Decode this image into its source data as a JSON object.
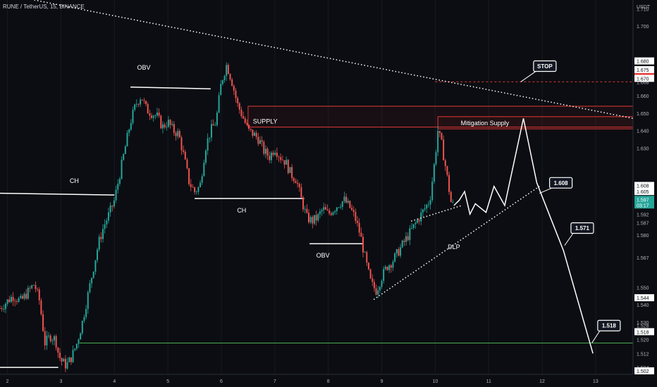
{
  "header": {
    "symbol_line": "RUNE / TetherUS, 15, BINANCE",
    "currency": "USDT"
  },
  "colors": {
    "background": "#0b0d12",
    "up_candle": "#26a69a",
    "down_candle": "#ef5350",
    "annotation_white": "#ffffff",
    "supply_red": "#e53935",
    "stop_red": "#e53935",
    "target_green": "#4caf50",
    "price_badge_green": "#26a69a"
  },
  "chart_data": {
    "type": "candlestick",
    "title": "RUNE / TetherUS, 15, BINANCE",
    "x_unit": "day",
    "xlim": [
      1.86,
      13.7
    ],
    "ylim": [
      1.5,
      1.715
    ],
    "x_ticks": [
      {
        "x": 2,
        "label": "2"
      },
      {
        "x": 3,
        "label": "3"
      },
      {
        "x": 4,
        "label": "4"
      },
      {
        "x": 5,
        "label": "5"
      },
      {
        "x": 6,
        "label": "6"
      },
      {
        "x": 7,
        "label": "7"
      },
      {
        "x": 8,
        "label": "8"
      },
      {
        "x": 9,
        "label": "9"
      },
      {
        "x": 10,
        "label": "10"
      },
      {
        "x": 11,
        "label": "11"
      },
      {
        "x": 12,
        "label": "12"
      },
      {
        "x": 13,
        "label": "13"
      }
    ],
    "y_ticks": [
      "1.710",
      "1.700",
      "1.675",
      "1.668",
      "1.660",
      "1.650",
      "1.640",
      "1.630",
      "1.608",
      "1.607",
      "1.598",
      "1.597",
      "1.592",
      "1.587",
      "1.580",
      "1.567",
      "1.550",
      "1.540",
      "1.530",
      "1.528",
      "1.520",
      "1.512",
      "1.504"
    ],
    "y_tick_values": [
      1.71,
      1.7,
      1.675,
      1.668,
      1.66,
      1.65,
      1.64,
      1.63,
      1.608,
      1.607,
      1.598,
      1.597,
      1.592,
      1.587,
      1.58,
      1.567,
      1.55,
      1.54,
      1.53,
      1.528,
      1.52,
      1.512,
      1.504
    ],
    "price_badges": [
      {
        "label": "1.680",
        "value": 1.68,
        "style": "white"
      },
      {
        "label": "1.675",
        "value": 1.675,
        "style": "white"
      },
      {
        "label": "1.671",
        "value": 1.671,
        "style": "red"
      },
      {
        "label": "1.670",
        "value": 1.67,
        "style": "white"
      },
      {
        "label": "1.608",
        "value": 1.6085,
        "style": "white"
      },
      {
        "label": "1.605",
        "value": 1.605,
        "style": "white"
      },
      {
        "label": "1.597",
        "value": 1.6005,
        "style": "green",
        "sub": "03:17"
      },
      {
        "label": "1.544",
        "value": 1.544,
        "style": "white"
      },
      {
        "label": "1.518",
        "value": 1.5245,
        "style": "white"
      },
      {
        "label": "1.502",
        "value": 1.502,
        "style": "white"
      }
    ],
    "price_path": [
      [
        1.86,
        1.538
      ],
      [
        2.1,
        1.545
      ],
      [
        2.25,
        1.542
      ],
      [
        2.4,
        1.548
      ],
      [
        2.5,
        1.552
      ],
      [
        2.6,
        1.542
      ],
      [
        2.7,
        1.518
      ],
      [
        2.8,
        1.522
      ],
      [
        2.9,
        1.52
      ],
      [
        2.95,
        1.512
      ],
      [
        3.0,
        1.508
      ],
      [
        3.1,
        1.505
      ],
      [
        3.2,
        1.51
      ],
      [
        3.3,
        1.518
      ],
      [
        3.4,
        1.53
      ],
      [
        3.5,
        1.545
      ],
      [
        3.6,
        1.56
      ],
      [
        3.7,
        1.575
      ],
      [
        3.8,
        1.585
      ],
      [
        3.9,
        1.592
      ],
      [
        4.0,
        1.6
      ],
      [
        4.1,
        1.615
      ],
      [
        4.2,
        1.63
      ],
      [
        4.3,
        1.645
      ],
      [
        4.4,
        1.655
      ],
      [
        4.5,
        1.66
      ],
      [
        4.6,
        1.652
      ],
      [
        4.7,
        1.65
      ],
      [
        4.8,
        1.648
      ],
      [
        4.9,
        1.642
      ],
      [
        5.0,
        1.645
      ],
      [
        5.1,
        1.64
      ],
      [
        5.2,
        1.638
      ],
      [
        5.3,
        1.625
      ],
      [
        5.4,
        1.61
      ],
      [
        5.5,
        1.605
      ],
      [
        5.6,
        1.608
      ],
      [
        5.7,
        1.63
      ],
      [
        5.8,
        1.64
      ],
      [
        5.9,
        1.645
      ],
      [
        6.0,
        1.668
      ],
      [
        6.1,
        1.678
      ],
      [
        6.2,
        1.668
      ],
      [
        6.3,
        1.655
      ],
      [
        6.4,
        1.648
      ],
      [
        6.5,
        1.64
      ],
      [
        6.6,
        1.638
      ],
      [
        6.7,
        1.635
      ],
      [
        6.8,
        1.628
      ],
      [
        6.9,
        1.625
      ],
      [
        7.0,
        1.63
      ],
      [
        7.1,
        1.625
      ],
      [
        7.2,
        1.622
      ],
      [
        7.3,
        1.615
      ],
      [
        7.4,
        1.612
      ],
      [
        7.5,
        1.6
      ],
      [
        7.6,
        1.59
      ],
      [
        7.7,
        1.588
      ],
      [
        7.8,
        1.59
      ],
      [
        7.9,
        1.595
      ],
      [
        8.0,
        1.592
      ],
      [
        8.1,
        1.595
      ],
      [
        8.2,
        1.598
      ],
      [
        8.3,
        1.6
      ],
      [
        8.4,
        1.596
      ],
      [
        8.5,
        1.59
      ],
      [
        8.6,
        1.58
      ],
      [
        8.7,
        1.565
      ],
      [
        8.8,
        1.552
      ],
      [
        8.9,
        1.548
      ],
      [
        9.0,
        1.556
      ],
      [
        9.1,
        1.562
      ],
      [
        9.2,
        1.565
      ],
      [
        9.3,
        1.57
      ],
      [
        9.4,
        1.575
      ],
      [
        9.5,
        1.58
      ],
      [
        9.6,
        1.585
      ],
      [
        9.7,
        1.59
      ],
      [
        9.8,
        1.595
      ],
      [
        9.9,
        1.6
      ],
      [
        10.0,
        1.625
      ],
      [
        10.05,
        1.64
      ],
      [
        10.12,
        1.632
      ],
      [
        10.2,
        1.618
      ],
      [
        10.3,
        1.598
      ],
      [
        10.35,
        1.597
      ]
    ],
    "target_path": [
      [
        10.35,
        1.597
      ],
      [
        10.45,
        1.6
      ],
      [
        10.55,
        1.605
      ],
      [
        10.65,
        1.592
      ],
      [
        10.75,
        1.598
      ],
      [
        10.95,
        1.593
      ],
      [
        11.1,
        1.608
      ],
      [
        11.3,
        1.597
      ],
      [
        11.65,
        1.647
      ],
      [
        11.9,
        1.61
      ],
      [
        12.4,
        1.571
      ],
      [
        12.95,
        1.512
      ]
    ],
    "trendlines": [
      {
        "name": "descending-trendline",
        "style": "dotted",
        "color": "white",
        "from": [
          2.5,
          1.715
        ],
        "to": [
          13.7,
          1.647
        ]
      },
      {
        "name": "dlp-ascending-trendline",
        "style": "dotted",
        "color": "white",
        "from": [
          8.85,
          1.543
        ],
        "to": [
          11.95,
          1.608
        ]
      },
      {
        "name": "minor-ascending-trendline",
        "style": "dotted",
        "color": "white",
        "from": [
          9.55,
          1.588
        ],
        "to": [
          10.5,
          1.597
        ]
      }
    ],
    "levels": [
      {
        "name": "ch-left-line",
        "from": [
          1.86,
          1.604
        ],
        "to": [
          4.0,
          1.603
        ],
        "color": "white"
      },
      {
        "name": "obv-top-line",
        "from": [
          4.3,
          1.665
        ],
        "to": [
          5.8,
          1.664
        ],
        "color": "white"
      },
      {
        "name": "ch-middle-line",
        "from": [
          5.5,
          1.601
        ],
        "to": [
          7.55,
          1.601
        ],
        "color": "white"
      },
      {
        "name": "obv-bottom-line",
        "from": [
          7.65,
          1.575
        ],
        "to": [
          8.65,
          1.575
        ],
        "color": "white"
      },
      {
        "name": "bottom-left-line",
        "from": [
          1.86,
          1.504
        ],
        "to": [
          2.95,
          1.504
        ],
        "color": "white"
      },
      {
        "name": "target-green-line",
        "from": [
          3.35,
          1.518
        ],
        "to": [
          13.7,
          1.518
        ],
        "color": "green"
      },
      {
        "name": "stop-line",
        "from": [
          10.0,
          1.668
        ],
        "to": [
          13.7,
          1.668
        ],
        "color": "red",
        "style": "dashed"
      }
    ],
    "zones": [
      {
        "name": "supply-zone",
        "x0": 6.5,
        "x1": 13.7,
        "y0": 1.642,
        "y1": 1.654,
        "color": "red"
      },
      {
        "name": "mitigation-supply-zone",
        "x0": 10.05,
        "x1": 13.7,
        "y0": 1.641,
        "y1": 1.648,
        "color": "red"
      }
    ],
    "annotations": [
      {
        "name": "label-obv-top",
        "text": "OBV",
        "x": 4.55,
        "y": 1.675
      },
      {
        "name": "label-ch-left",
        "text": "CH",
        "x": 3.25,
        "y": 1.61
      },
      {
        "name": "label-ch-middle",
        "text": "CH",
        "x": 6.38,
        "y": 1.593
      },
      {
        "name": "label-obv-bottom",
        "text": "OBV",
        "x": 7.9,
        "y": 1.567
      },
      {
        "name": "label-supply",
        "text": "SUPPLY",
        "x": 6.82,
        "y": 1.644
      },
      {
        "name": "label-mitigation-supply",
        "text": "Mitigation Supply",
        "x": 10.93,
        "y": 1.643
      },
      {
        "name": "label-dlp",
        "text": "DLP",
        "x": 10.35,
        "y": 1.572
      }
    ],
    "callouts": [
      {
        "name": "callout-stop",
        "text": "STOP",
        "x": 12.05,
        "y": 1.677,
        "anchor": [
          11.6,
          1.668
        ]
      },
      {
        "name": "callout-1608",
        "text": "1.608",
        "x": 12.35,
        "y": 1.61,
        "anchor": [
          11.95,
          1.604
        ]
      },
      {
        "name": "callout-1571",
        "text": "1.571",
        "x": 12.75,
        "y": 1.584,
        "anchor": [
          12.42,
          1.574
        ]
      },
      {
        "name": "callout-1518",
        "text": "1.518",
        "x": 13.25,
        "y": 1.528,
        "anchor": [
          12.93,
          1.518
        ]
      }
    ]
  }
}
